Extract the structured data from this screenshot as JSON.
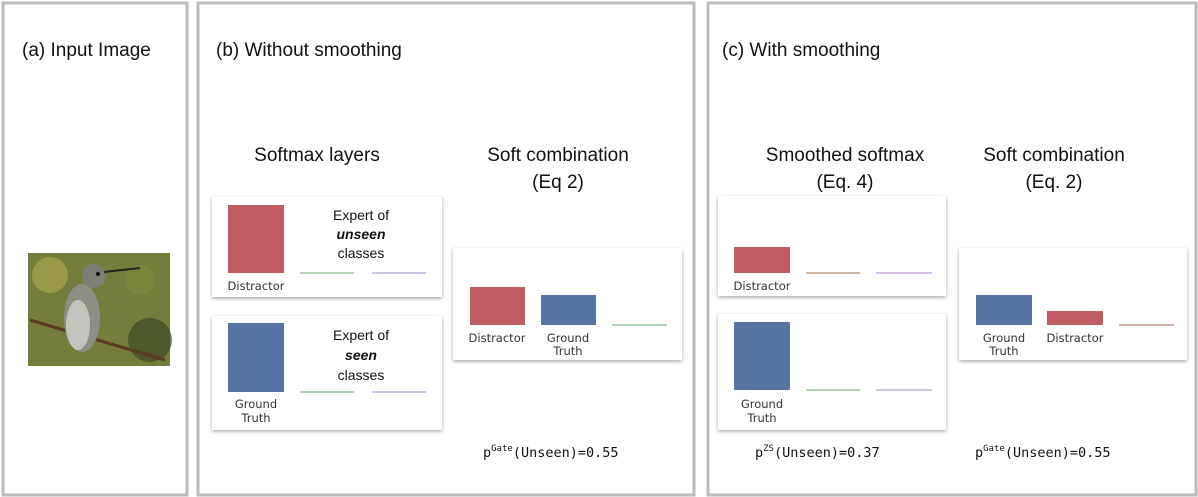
{
  "panels": [
    {
      "title": "(a) Input Image"
    },
    {
      "title": "(b) Without smoothing",
      "columns": [
        {
          "heading": [
            "Softmax layers"
          ],
          "boxes": [
            {
              "label": [
                "Expert of",
                "unseen",
                "classes"
              ],
              "bar_labels": [
                "Distractor"
              ]
            },
            {
              "label": [
                "Expert of",
                "seen",
                "classes"
              ],
              "bar_labels": [
                "Ground",
                "Truth"
              ]
            }
          ]
        },
        {
          "heading": [
            "Soft combination",
            "(Eq 2)"
          ],
          "bar_labels": [
            "Distractor",
            "Ground",
            "Truth"
          ],
          "formula": {
            "symbol": "p",
            "superscript": "Gate",
            "text": "(Unseen)=0.55"
          }
        }
      ]
    },
    {
      "title": "(c) With smoothing",
      "columns": [
        {
          "heading": [
            "Smoothed softmax",
            "(Eq. 4)"
          ],
          "boxes": [
            {
              "bar_labels": [
                "Distractor"
              ]
            },
            {
              "bar_labels": [
                "Ground",
                "Truth"
              ]
            }
          ],
          "formula": {
            "symbol": "p",
            "superscript": "ZS",
            "text": "(Unseen)=0.37"
          }
        },
        {
          "heading": [
            "Soft combination",
            "(Eq. 2)"
          ],
          "bar_labels": [
            "Ground",
            "Truth",
            "Distractor"
          ],
          "formula": {
            "symbol": "p",
            "superscript": "Gate",
            "text": "(Unseen)=0.55"
          }
        }
      ]
    }
  ]
}
